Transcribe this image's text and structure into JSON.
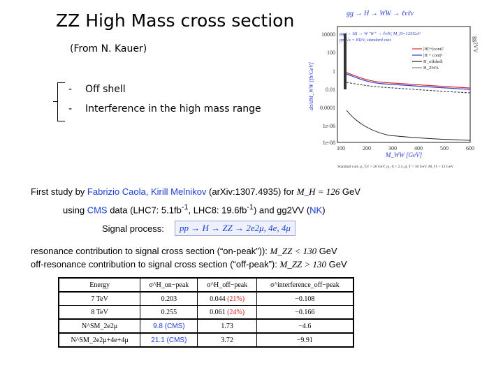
{
  "slide": {
    "title": "ZZ High Mass cross section",
    "subtitle": "(From N. Kauer)",
    "bullets": [
      {
        "dash": "-",
        "text": "Off shell"
      },
      {
        "dash": "-",
        "text": "Interference in the high mass range"
      }
    ]
  },
  "plot": {
    "title": "gg → H → WW → ℓνℓν",
    "side_label": "gg2VV",
    "ylabel": "dσ/dM_WW [fb/GeV]",
    "xlabel": "M_WW [GeV]",
    "process_line1": "gg (→ H) → W⁻W⁺ → ℓνℓ̄ν̄, M_H=125GeV",
    "process_line2": "pp, √s = 8TeV, standard cuts",
    "legend": [
      "|H|²+|cont|²",
      "|H + cont|²",
      "H_offshell",
      "H_ZWA"
    ],
    "y_ticks": [
      "10000",
      "100",
      "1",
      "0.01",
      "0.0001",
      "1e-06",
      "1e-08"
    ],
    "x_ticks": [
      "100",
      "200",
      "300",
      "400",
      "500",
      "600"
    ],
    "footnote": "Standard cuts: p_T,ℓ > 20 GeV, |η_ℓ| < 2.5, p̸_T > 30 GeV, M_ℓℓ > 12 GeV",
    "colors": {
      "red": "#e0282e",
      "blue": "#2a3fd8",
      "dark": "#222222",
      "gray": "#888888"
    }
  },
  "body": {
    "line1_prefix": "First study by ",
    "line1_authors": "Fabrizio Caola, Kirill Melnikov",
    "line1_mid": " (arXiv:1307.4935) for ",
    "line1_math": "M_H = 126",
    "line1_unit": " GeV",
    "line2_prefix": "using ",
    "line2_cms": "CMS",
    "line2_mid": " data (LHC7: 5.1fb",
    "line2_sup1": "-1",
    "line2_mid2": ", LHC8: 19.6fb",
    "line2_sup2": "-1",
    "line2_mid3": ") and gg2VV (",
    "line2_nk": "NK",
    "line2_end": ")",
    "signal_label": "Signal process:",
    "signal_process": "pp → H → ZZ → 2e2μ, 4e, 4μ",
    "on_peak_text": "resonance contribution to signal cross section (“on-peak”)):",
    "on_peak_math": "M_ZZ < 130",
    "on_peak_unit": " GeV",
    "off_peak_text": "off-resonance contribution to signal cross section (“off-peak”):",
    "off_peak_math": "M_ZZ > 130",
    "off_peak_unit": " GeV"
  },
  "table": {
    "headers": [
      "Energy",
      "σ^H_on−peak",
      "σ^H_off−peak",
      "σ^interference_off−peak"
    ],
    "rows": [
      {
        "energy": "7 TeV",
        "on": "0.203",
        "off": "0.044",
        "off_pct": "(21%)",
        "intf": "−0.108"
      },
      {
        "energy": "8 TeV",
        "on": "0.255",
        "off": "0.061",
        "off_pct": "(24%)",
        "intf": "−0.166"
      },
      {
        "energy": "N^SM_2e2μ",
        "on": "9.8 (CMS)",
        "off": "1.73",
        "off_pct": "",
        "intf": "−4.6"
      },
      {
        "energy": "N^SM_2e2μ+4e+4μ",
        "on": "21.1 (CMS)",
        "off": "3.72",
        "off_pct": "",
        "intf": "−9.91"
      }
    ]
  }
}
